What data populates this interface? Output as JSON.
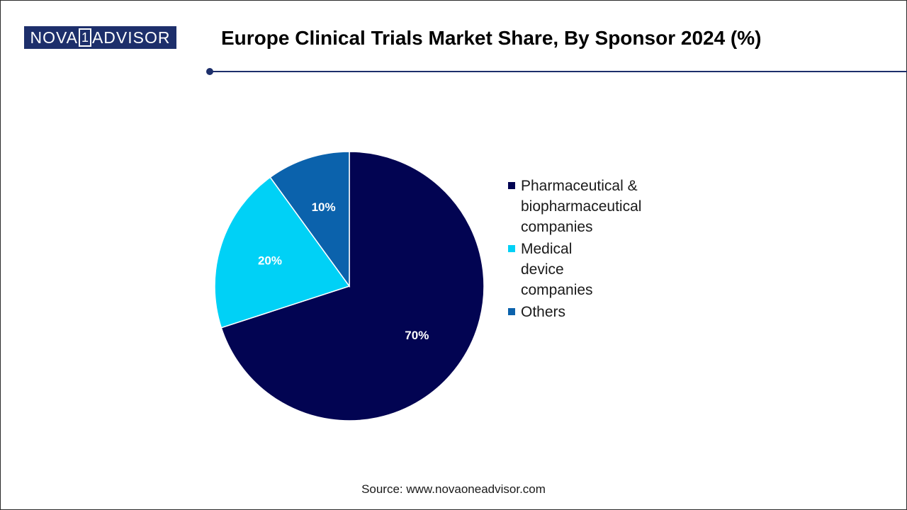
{
  "logo": {
    "left": "NOVA",
    "mid": "1",
    "right": "ADVISOR"
  },
  "title": "Europe Clinical Trials Market Share, By Sponsor 2024 (%)",
  "source": "Source: www.novaoneadvisor.com",
  "colors": {
    "brand": "#1d2f6b"
  },
  "chart_data": {
    "type": "pie",
    "title": "Europe Clinical Trials Market Share, By Sponsor 2024 (%)",
    "categories": [
      "Pharmaceutical & biopharmaceutical companies",
      "Medical device companies",
      "Others"
    ],
    "values": [
      70,
      20,
      10
    ],
    "data_labels": [
      "70%",
      "20%",
      "10%"
    ],
    "colors": [
      "#020452",
      "#00d1f6",
      "#0b62ac"
    ],
    "legend_position": "right",
    "start_angle": "12 o'clock, clockwise"
  },
  "legend": [
    {
      "label": "Pharmaceutical &\nbiopharmaceutical companies",
      "color": "#020452"
    },
    {
      "label": "Medical device companies",
      "color": "#00d1f6"
    },
    {
      "label": "Others",
      "color": "#0b62ac"
    }
  ]
}
